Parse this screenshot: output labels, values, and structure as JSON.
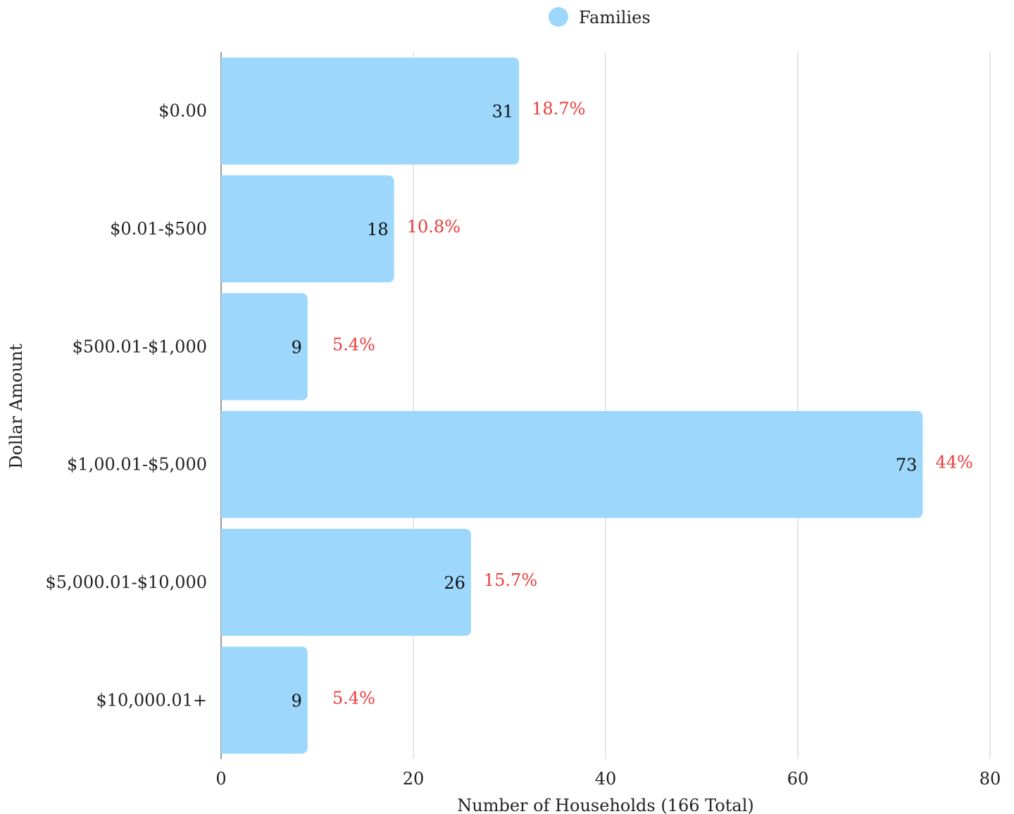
{
  "colors": {
    "bar": "#9dd8fc",
    "percent_text": "#ef3b3b",
    "grid": "#cccccc"
  },
  "chart_data": {
    "type": "bar",
    "orientation": "horizontal",
    "categories": [
      "$0.00",
      "$0.01-$500",
      "$500.01-$1,000",
      "$1,00.01-$5,000",
      "$5,000.01-$10,000",
      "$10,000.01+"
    ],
    "series": [
      {
        "name": "Families",
        "values": [
          31,
          18,
          9,
          73,
          26,
          9
        ]
      }
    ],
    "percent_labels": [
      "18.7%",
      "10.8%",
      "5.4%",
      "44%",
      "15.7%",
      "5.4%"
    ],
    "xlabel": "Number of Households (166 Total)",
    "ylabel": "Dollar Amount",
    "xlim": [
      0,
      80
    ],
    "xticks": [
      0,
      20,
      40,
      60,
      80
    ],
    "grid": true,
    "legend_position": "top-center"
  }
}
